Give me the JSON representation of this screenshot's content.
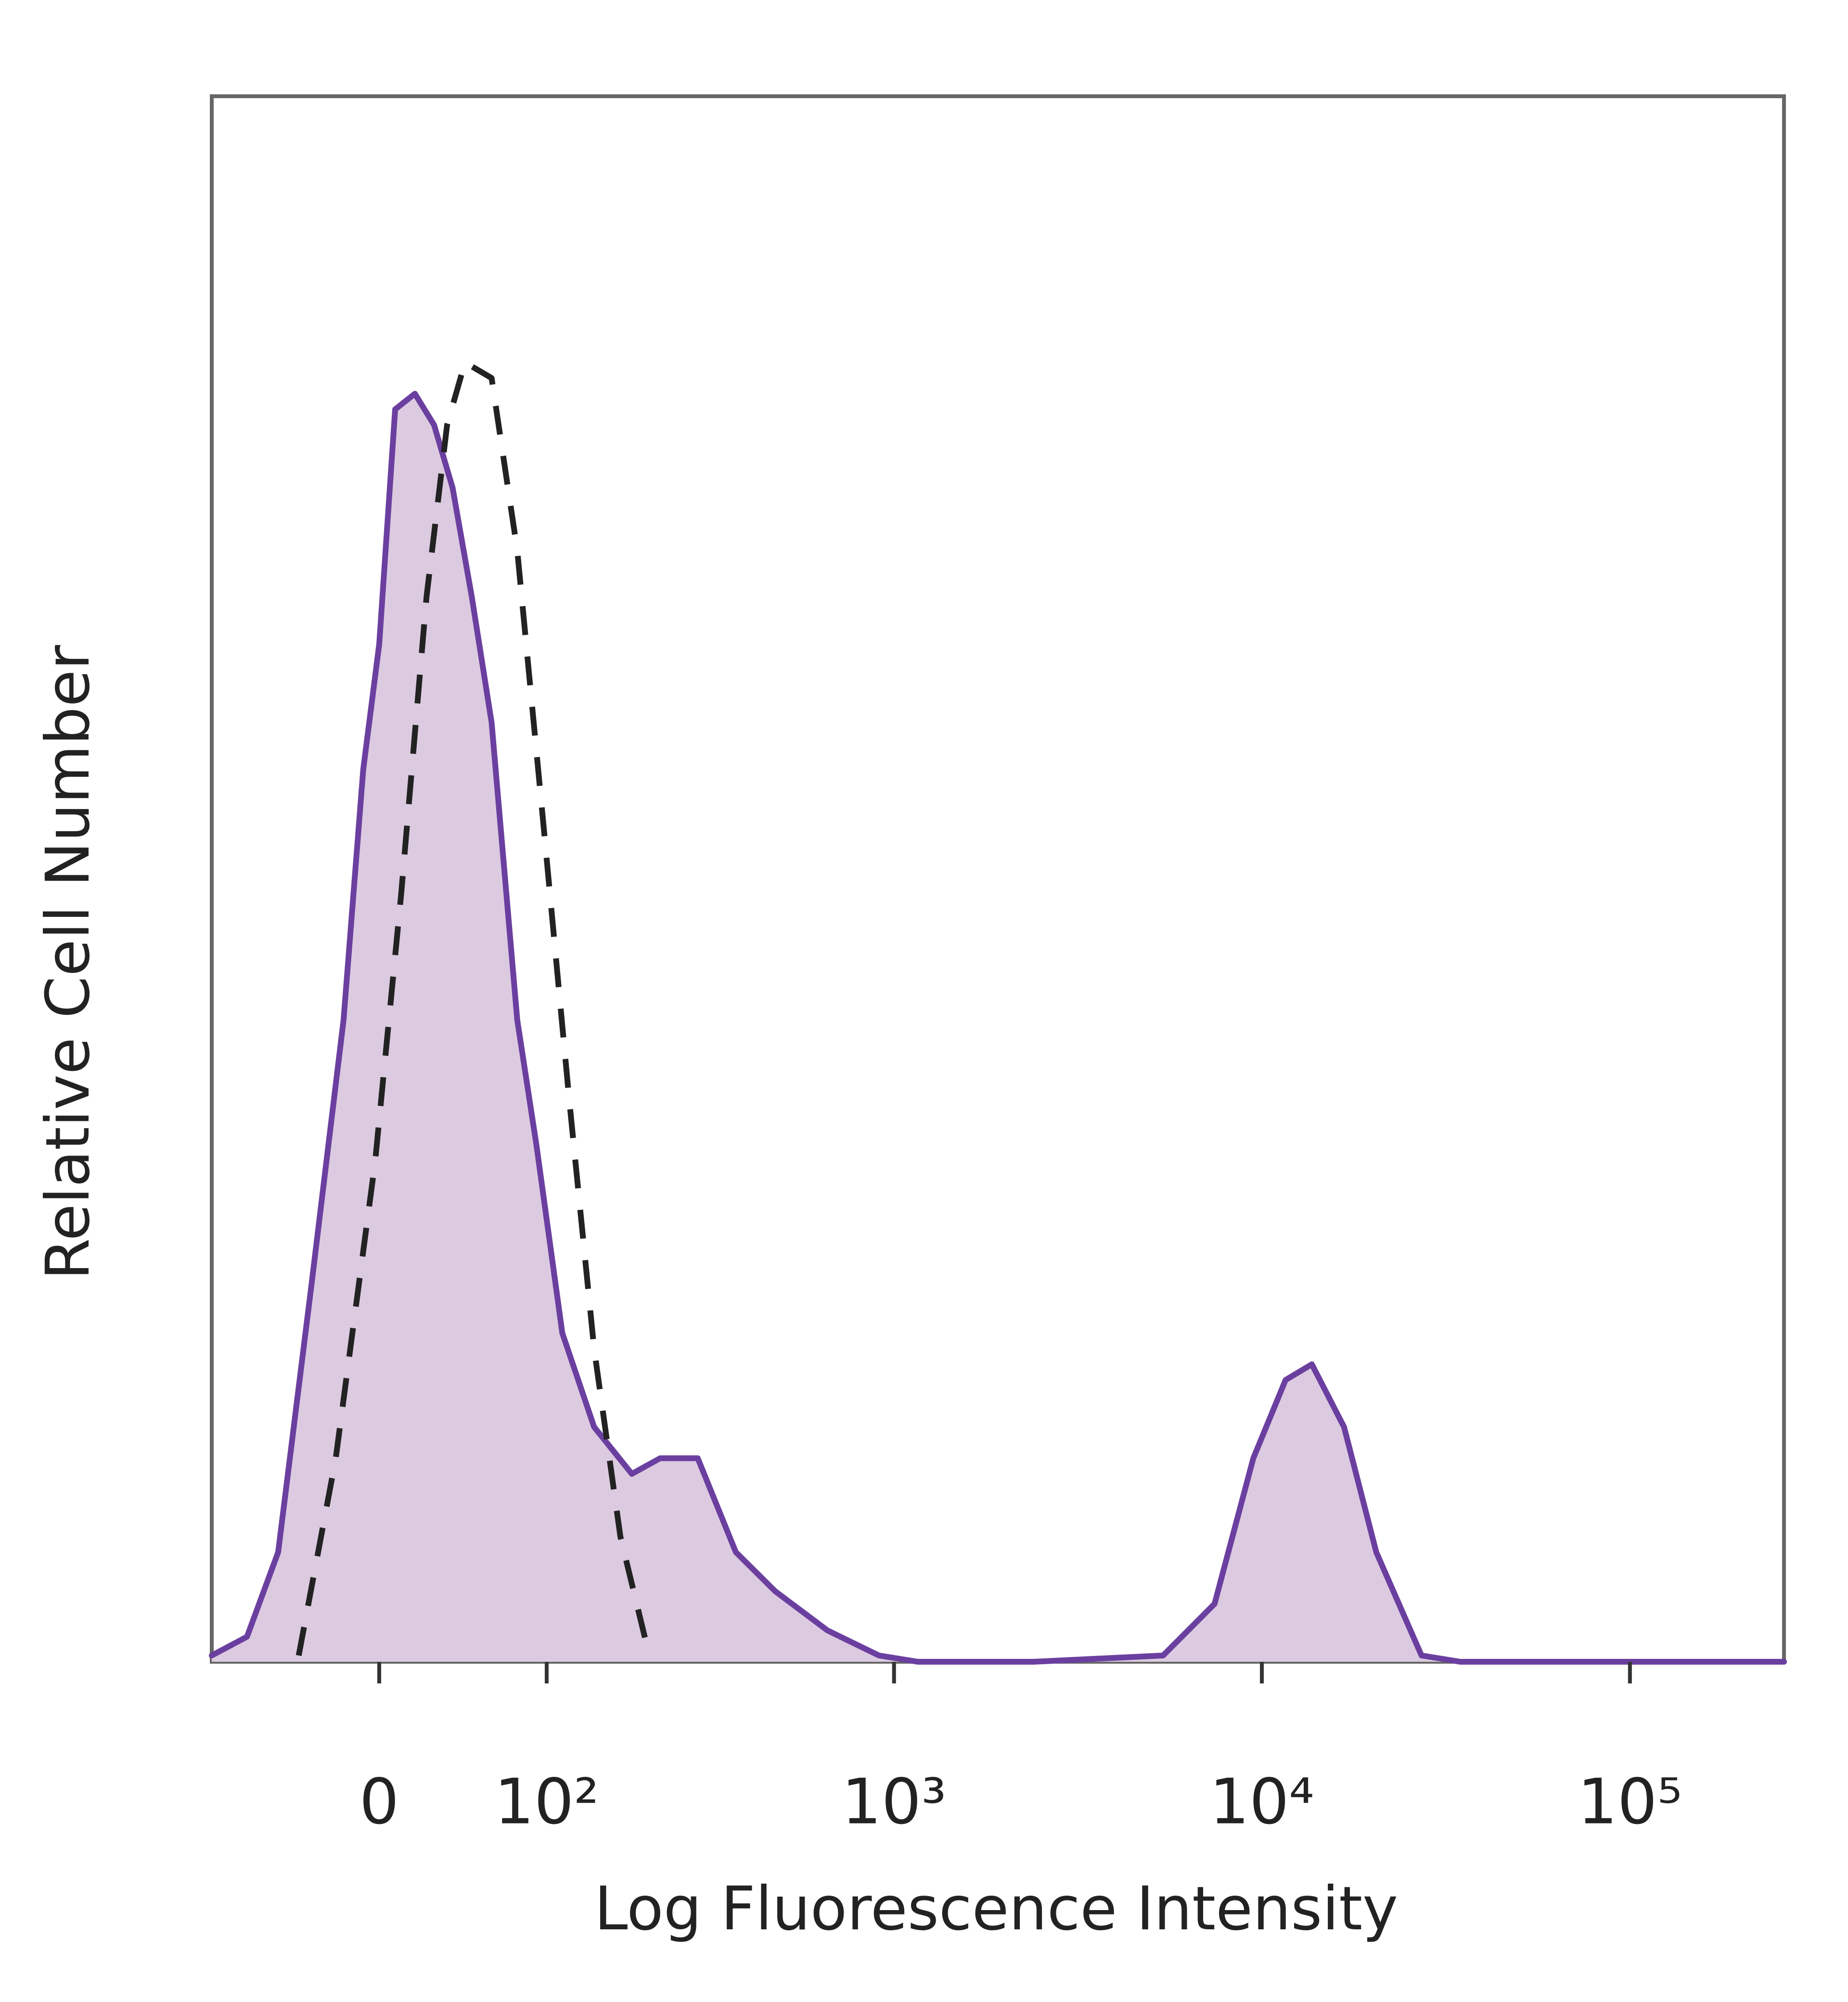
{
  "chart_data": {
    "type": "line",
    "xlabel": "Log Fluorescence Intensity",
    "ylabel": "Relative Cell Number",
    "xscale": "biexponential",
    "xlim": [
      -100,
      262144
    ],
    "ylim": [
      0,
      100
    ],
    "xticks": [
      0,
      {
        "value": 100,
        "label": "10²"
      },
      {
        "value": 1000,
        "label": "10³"
      },
      {
        "value": 10000,
        "label": "10⁴"
      },
      {
        "value": 100000,
        "label": "10⁵"
      }
    ],
    "series": [
      {
        "color": "#6b3fa0",
        "fill": "#dccbe0",
        "x": [
          -100,
          -74,
          -54,
          -35,
          -18,
          -8,
          0,
          8,
          18,
          28,
          38,
          49,
          61,
          78,
          92,
          113,
          143,
          186,
          225,
          288,
          368,
          473,
          658,
          910,
          1160,
          2400,
          5390,
          7440,
          9480,
          11600,
          13670,
          16720,
          20460,
          27150,
          34600,
          60900,
          262144
        ],
        "values": [
          0.4,
          1.6,
          7,
          24,
          41,
          57,
          65,
          80,
          81,
          79,
          75,
          68,
          60,
          41,
          33,
          21,
          15,
          12,
          13,
          13,
          7,
          4.5,
          2,
          0.4,
          0,
          0,
          0.4,
          3.7,
          13,
          18,
          19,
          15,
          7,
          0.4,
          0,
          0,
          0
        ]
      },
      {
        "color": "#222222",
        "dashed": true,
        "x": [
          -42,
          -22,
          -2,
          11,
          24,
          35,
          45,
          61,
          78,
          98,
          119,
          143,
          172,
          205
        ],
        "values": [
          0.4,
          13,
          32,
          49,
          68,
          79,
          83,
          82,
          71,
          53,
          36,
          20,
          8,
          1.2
        ]
      }
    ]
  }
}
